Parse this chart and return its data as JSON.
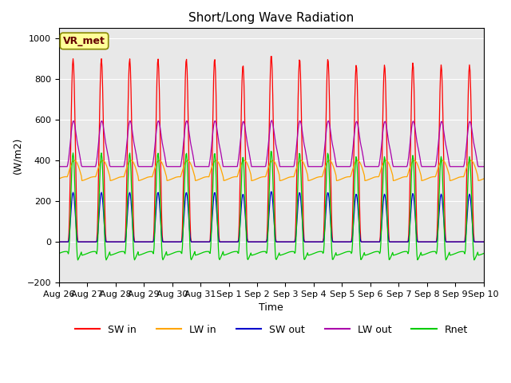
{
  "title": "Short/Long Wave Radiation",
  "xlabel": "Time",
  "ylabel": "(W/m2)",
  "ylim": [
    -200,
    1050
  ],
  "yticks": [
    -200,
    0,
    200,
    400,
    600,
    800,
    1000
  ],
  "bg_color": "#e8e8e8",
  "fig_color": "#ffffff",
  "station_label": "VR_met",
  "series": {
    "SW_in": {
      "color": "#ff0000",
      "label": "SW in"
    },
    "LW_in": {
      "color": "#ffa500",
      "label": "LW in"
    },
    "SW_out": {
      "color": "#0000cc",
      "label": "SW out"
    },
    "LW_out": {
      "color": "#aa00aa",
      "label": "LW out"
    },
    "Rnet": {
      "color": "#00cc00",
      "label": "Rnet"
    }
  },
  "xtick_labels": [
    "Aug 26",
    "Aug 27",
    "Aug 28",
    "Aug 29",
    "Aug 30",
    "Aug 31",
    "Sep 1",
    "Sep 2",
    "Sep 3",
    "Sep 4",
    "Sep 5",
    "Sep 6",
    "Sep 7",
    "Sep 8",
    "Sep 9",
    "Sep 10"
  ],
  "n_days": 15,
  "pts_per_day": 48
}
